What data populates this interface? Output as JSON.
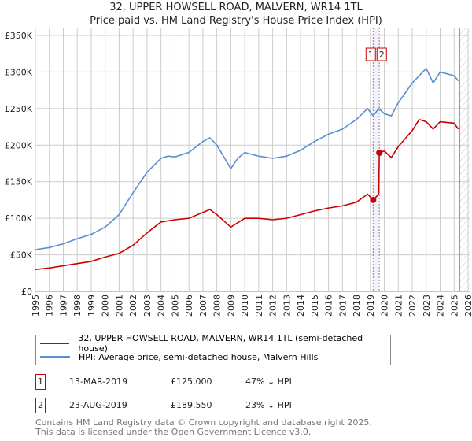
{
  "chart_data": {
    "type": "line",
    "title": "32, UPPER HOWSELL ROAD, MALVERN, WR14 1TL",
    "subtitle": "Price paid vs. HM Land Registry's House Price Index (HPI)",
    "xlim": [
      1995,
      2026
    ],
    "ylim": [
      0,
      350000
    ],
    "x_ticks": [
      "1995",
      "1996",
      "1997",
      "1998",
      "1999",
      "2000",
      "2001",
      "2002",
      "2003",
      "2004",
      "2005",
      "2006",
      "2007",
      "2008",
      "2009",
      "2010",
      "2011",
      "2012",
      "2013",
      "2014",
      "2015",
      "2016",
      "2017",
      "2018",
      "2019",
      "2020",
      "2021",
      "2022",
      "2023",
      "2024",
      "2025",
      "2026"
    ],
    "y_ticks": [
      {
        "v": 0,
        "label": "£0"
      },
      {
        "v": 50000,
        "label": "£50K"
      },
      {
        "v": 100000,
        "label": "£100K"
      },
      {
        "v": 150000,
        "label": "£150K"
      },
      {
        "v": 200000,
        "label": "£200K"
      },
      {
        "v": 250000,
        "label": "£250K"
      },
      {
        "v": 300000,
        "label": "£300K"
      },
      {
        "v": 350000,
        "label": "£350K"
      }
    ],
    "grid": true,
    "series": [
      {
        "name": "32, UPPER HOWSELL ROAD, MALVERN, WR14 1TL (semi-detached house)",
        "color": "#cc0000",
        "x": [
          1995,
          1996,
          1997,
          1998,
          1999,
          2000,
          2001,
          2002,
          2003,
          2004,
          2005,
          2006,
          2007,
          2007.5,
          2008,
          2009,
          2010,
          2011,
          2012,
          2013,
          2014,
          2015,
          2016,
          2017,
          2018,
          2018.8,
          2019.2,
          2019.6,
          2019.64,
          2020,
          2020.5,
          2021,
          2022,
          2022.5,
          2023,
          2023.5,
          2024,
          2025,
          2025.3
        ],
        "y": [
          30000,
          32000,
          35000,
          38000,
          41000,
          47000,
          52000,
          63000,
          80000,
          95000,
          98000,
          100000,
          108000,
          112000,
          105000,
          88000,
          100000,
          100000,
          98000,
          100000,
          105000,
          110000,
          114000,
          117000,
          122000,
          133000,
          125000,
          133000,
          189550,
          192000,
          183000,
          198000,
          220000,
          235000,
          232000,
          222000,
          232000,
          230000,
          222000
        ]
      },
      {
        "name": "HPI: Average price, semi-detached house, Malvern Hills",
        "color": "#5b8fd0",
        "x": [
          1995,
          1996,
          1997,
          1998,
          1999,
          2000,
          2001,
          2002,
          2003,
          2004,
          2004.5,
          2005,
          2006,
          2007,
          2007.5,
          2008,
          2009,
          2009.5,
          2010,
          2011,
          2012,
          2013,
          2014,
          2015,
          2016,
          2017,
          2018,
          2018.8,
          2019.2,
          2019.6,
          2020,
          2020.5,
          2021,
          2022,
          2023,
          2023.5,
          2024,
          2025,
          2025.3
        ],
        "y": [
          57000,
          60000,
          65000,
          72000,
          78000,
          88000,
          105000,
          135000,
          163000,
          182000,
          185000,
          184000,
          190000,
          205000,
          210000,
          200000,
          168000,
          182000,
          190000,
          185000,
          182000,
          185000,
          193000,
          205000,
          215000,
          222000,
          235000,
          250000,
          240000,
          250000,
          243000,
          240000,
          258000,
          285000,
          305000,
          285000,
          300000,
          295000,
          288000
        ]
      }
    ],
    "annotations": [
      {
        "label": "1",
        "x": 2019.2,
        "y": 125000
      },
      {
        "label": "2",
        "x": 2019.64,
        "y": 189550
      }
    ],
    "data_end": 2025.4
  },
  "legend": {
    "items": [
      "32, UPPER HOWSELL ROAD, MALVERN, WR14 1TL (semi-detached house)",
      "HPI: Average price, semi-detached house, Malvern Hills"
    ]
  },
  "sales": [
    {
      "num": "1",
      "date": "13-MAR-2019",
      "price": "£125,000",
      "hpi": "47% ↓ HPI"
    },
    {
      "num": "2",
      "date": "23-AUG-2019",
      "price": "£189,550",
      "hpi": "23% ↓ HPI"
    }
  ],
  "footer": {
    "line1": "Contains HM Land Registry data © Crown copyright and database right 2025.",
    "line2": "This data is licensed under the Open Government Licence v3.0."
  }
}
